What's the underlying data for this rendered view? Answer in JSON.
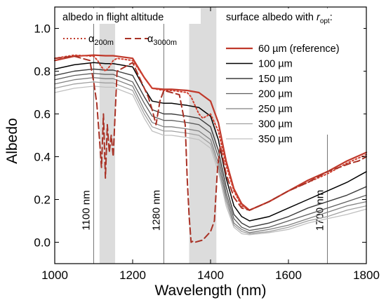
{
  "chart_data": {
    "type": "line",
    "xlabel": "Wavelength (nm)",
    "ylabel": "Albedo",
    "xlim": [
      1000,
      1800
    ],
    "ylim": [
      -0.1,
      1.1
    ],
    "x_ticks": [
      "1000",
      "1200",
      "1400",
      "1600",
      "1800"
    ],
    "y_ticks": [
      "0.0",
      "0.2",
      "0.4",
      "0.6",
      "0.8",
      "1.0"
    ],
    "grid": false,
    "flight_legend": {
      "title": "albedo in flight altitude",
      "entries": [
        {
          "symbol": "α",
          "sub": "200m",
          "style": "dotted",
          "color": "#c0392b"
        },
        {
          "symbol": "α",
          "sub": "3000m",
          "style": "dashed",
          "color": "#a93226"
        }
      ]
    },
    "surface_legend": {
      "title_prefix": "surface albedo with ",
      "title_var": "r",
      "title_sub": "opt",
      "title_suffix": ":"
    },
    "shaded_bands": [
      [
        1115,
        1155
      ],
      [
        1345,
        1415
      ]
    ],
    "vertical_lines": [
      {
        "x": 1100,
        "label": "1100 nm"
      },
      {
        "x": 1280,
        "label": "1280 nm"
      },
      {
        "x": 1700,
        "label": "1700 nm"
      }
    ],
    "series": [
      {
        "name": "60 µm (reference)",
        "color": "#c0392b",
        "width": 2.2,
        "style": "solid",
        "x": [
          1000,
          1050,
          1100,
          1130,
          1150,
          1200,
          1230,
          1250,
          1280,
          1300,
          1340,
          1370,
          1400,
          1420,
          1440,
          1460,
          1480,
          1500,
          1550,
          1600,
          1650,
          1700,
          1750,
          1800
        ],
        "y": [
          0.85,
          0.87,
          0.875,
          0.872,
          0.872,
          0.86,
          0.77,
          0.72,
          0.715,
          0.715,
          0.71,
          0.7,
          0.66,
          0.56,
          0.38,
          0.25,
          0.18,
          0.15,
          0.19,
          0.24,
          0.29,
          0.33,
          0.38,
          0.42
        ]
      },
      {
        "name": "100 µm",
        "color": "#000000",
        "width": 1.5,
        "style": "solid",
        "x": [
          1000,
          1050,
          1100,
          1130,
          1150,
          1200,
          1230,
          1250,
          1280,
          1300,
          1340,
          1370,
          1400,
          1420,
          1440,
          1460,
          1480,
          1500,
          1550,
          1600,
          1650,
          1700,
          1750,
          1800
        ],
        "y": [
          0.81,
          0.83,
          0.84,
          0.835,
          0.835,
          0.82,
          0.72,
          0.66,
          0.65,
          0.65,
          0.64,
          0.63,
          0.59,
          0.48,
          0.3,
          0.17,
          0.12,
          0.1,
          0.12,
          0.16,
          0.2,
          0.24,
          0.28,
          0.33
        ]
      },
      {
        "name": "150 µm",
        "color": "#3c3c3c",
        "width": 1.4,
        "style": "solid",
        "x": [
          1000,
          1050,
          1100,
          1130,
          1150,
          1200,
          1230,
          1250,
          1280,
          1300,
          1340,
          1370,
          1400,
          1420,
          1440,
          1460,
          1480,
          1500,
          1550,
          1600,
          1650,
          1700,
          1750,
          1800
        ],
        "y": [
          0.78,
          0.8,
          0.81,
          0.805,
          0.805,
          0.78,
          0.68,
          0.62,
          0.6,
          0.6,
          0.59,
          0.58,
          0.54,
          0.43,
          0.26,
          0.13,
          0.09,
          0.07,
          0.09,
          0.12,
          0.16,
          0.19,
          0.22,
          0.26
        ]
      },
      {
        "name": "200 µm",
        "color": "#5e5e5e",
        "width": 1.3,
        "style": "solid",
        "x": [
          1000,
          1050,
          1100,
          1130,
          1150,
          1200,
          1230,
          1250,
          1280,
          1300,
          1340,
          1370,
          1400,
          1420,
          1440,
          1460,
          1480,
          1500,
          1550,
          1600,
          1650,
          1700,
          1750,
          1800
        ],
        "y": [
          0.76,
          0.78,
          0.79,
          0.785,
          0.785,
          0.75,
          0.65,
          0.59,
          0.57,
          0.57,
          0.56,
          0.55,
          0.51,
          0.4,
          0.23,
          0.11,
          0.07,
          0.055,
          0.07,
          0.1,
          0.13,
          0.16,
          0.19,
          0.22
        ]
      },
      {
        "name": "250 µm",
        "color": "#808080",
        "width": 1.3,
        "style": "solid",
        "x": [
          1000,
          1050,
          1100,
          1130,
          1150,
          1200,
          1230,
          1250,
          1280,
          1300,
          1340,
          1370,
          1400,
          1420,
          1440,
          1460,
          1480,
          1500,
          1550,
          1600,
          1650,
          1700,
          1750,
          1800
        ],
        "y": [
          0.74,
          0.76,
          0.77,
          0.765,
          0.765,
          0.73,
          0.62,
          0.56,
          0.54,
          0.54,
          0.53,
          0.52,
          0.48,
          0.37,
          0.21,
          0.09,
          0.06,
          0.045,
          0.06,
          0.08,
          0.11,
          0.14,
          0.17,
          0.19
        ]
      },
      {
        "name": "300 µm",
        "color": "#a0a0a0",
        "width": 1.3,
        "style": "solid",
        "x": [
          1000,
          1050,
          1100,
          1130,
          1150,
          1200,
          1230,
          1250,
          1280,
          1300,
          1340,
          1370,
          1400,
          1420,
          1440,
          1460,
          1480,
          1500,
          1550,
          1600,
          1650,
          1700,
          1750,
          1800
        ],
        "y": [
          0.72,
          0.74,
          0.75,
          0.745,
          0.745,
          0.71,
          0.6,
          0.54,
          0.52,
          0.52,
          0.51,
          0.5,
          0.46,
          0.35,
          0.19,
          0.08,
          0.05,
          0.04,
          0.05,
          0.07,
          0.1,
          0.12,
          0.15,
          0.17
        ]
      },
      {
        "name": "350 µm",
        "color": "#c0c0c0",
        "width": 1.3,
        "style": "solid",
        "x": [
          1000,
          1050,
          1100,
          1130,
          1150,
          1200,
          1230,
          1250,
          1280,
          1300,
          1340,
          1370,
          1400,
          1420,
          1440,
          1460,
          1480,
          1500,
          1550,
          1600,
          1650,
          1700,
          1750,
          1800
        ],
        "y": [
          0.7,
          0.72,
          0.73,
          0.725,
          0.725,
          0.69,
          0.58,
          0.52,
          0.5,
          0.5,
          0.49,
          0.48,
          0.44,
          0.33,
          0.17,
          0.07,
          0.04,
          0.035,
          0.045,
          0.06,
          0.09,
          0.11,
          0.13,
          0.155
        ]
      }
    ],
    "flight_series": [
      {
        "name": "α200m",
        "color": "#d04030",
        "width": 2.0,
        "style": "dotted",
        "x": [
          1000,
          1050,
          1100,
          1110,
          1120,
          1130,
          1140,
          1150,
          1160,
          1200,
          1230,
          1250,
          1280,
          1300,
          1340,
          1350,
          1360,
          1370,
          1380,
          1400,
          1420,
          1440,
          1460,
          1480,
          1500,
          1550,
          1600,
          1650,
          1700,
          1750,
          1800
        ],
        "y": [
          0.86,
          0.875,
          0.87,
          0.85,
          0.82,
          0.8,
          0.82,
          0.85,
          0.86,
          0.85,
          0.77,
          0.72,
          0.71,
          0.71,
          0.7,
          0.68,
          0.64,
          0.6,
          0.58,
          0.6,
          0.52,
          0.36,
          0.24,
          0.17,
          0.15,
          0.19,
          0.24,
          0.28,
          0.32,
          0.37,
          0.41
        ]
      },
      {
        "name": "α3000m",
        "color": "#a93226",
        "width": 2.0,
        "style": "dashed",
        "x": [
          1000,
          1050,
          1090,
          1100,
          1108,
          1115,
          1120,
          1125,
          1130,
          1135,
          1140,
          1145,
          1150,
          1160,
          1200,
          1220,
          1240,
          1250,
          1260,
          1270,
          1280,
          1300,
          1320,
          1335,
          1340,
          1345,
          1350,
          1355,
          1360,
          1380,
          1400,
          1410,
          1418,
          1425,
          1440,
          1460,
          1480,
          1500,
          1550,
          1600,
          1650,
          1680,
          1700,
          1730,
          1760,
          1780,
          1800
        ],
        "y": [
          0.86,
          0.87,
          0.85,
          0.75,
          0.65,
          0.48,
          0.35,
          0.6,
          0.3,
          0.55,
          0.42,
          0.5,
          0.4,
          0.8,
          0.84,
          0.76,
          0.68,
          0.62,
          0.55,
          0.66,
          0.71,
          0.7,
          0.69,
          0.55,
          0.3,
          0.12,
          0.0,
          0.005,
          0.0,
          0.01,
          0.05,
          0.1,
          0.35,
          0.45,
          0.32,
          0.21,
          0.16,
          0.15,
          0.19,
          0.24,
          0.28,
          0.31,
          0.33,
          0.35,
          0.37,
          0.38,
          0.4
        ]
      }
    ]
  }
}
